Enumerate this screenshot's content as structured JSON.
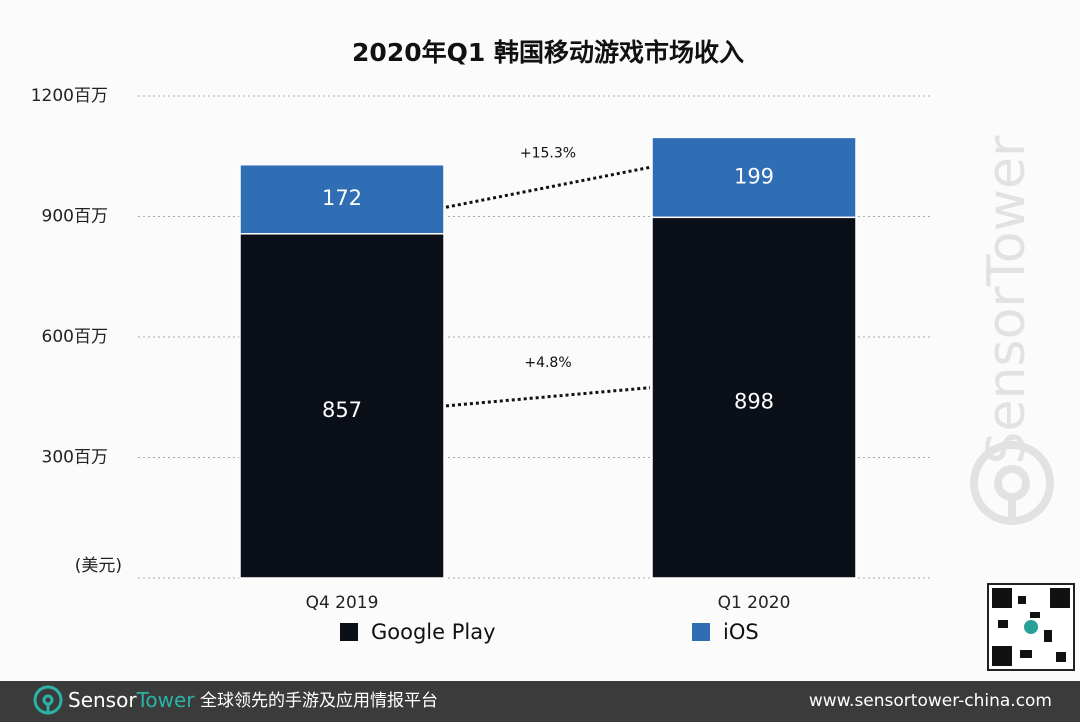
{
  "chart_data": {
    "type": "bar",
    "stacked": true,
    "title": "2020年Q1 韩国移动游戏市场收入",
    "categories": [
      "Q4  2019",
      "Q1 2020"
    ],
    "series": [
      {
        "name": "Google Play",
        "color": "#0b0f18",
        "values": [
          857,
          898
        ]
      },
      {
        "name": "iOS",
        "color": "#2f6db5",
        "values": [
          172,
          199
        ]
      }
    ],
    "ylim": [
      0,
      1200
    ],
    "yticks": [
      {
        "value": 300,
        "label": "300百万"
      },
      {
        "value": 600,
        "label": "600百万"
      },
      {
        "value": 900,
        "label": "900百万"
      },
      {
        "value": 1200,
        "label": "1200百万"
      }
    ],
    "y_unit": "(美元)",
    "grid": true,
    "annotations": [
      "+15.3%",
      "+4.8%"
    ]
  },
  "watermark": "SensorTower",
  "footer": {
    "brand": [
      "Sensor",
      "Tower"
    ],
    "tagline": "全球领先的手游及应用情报平台",
    "url": "www.sensortower-china.com"
  }
}
